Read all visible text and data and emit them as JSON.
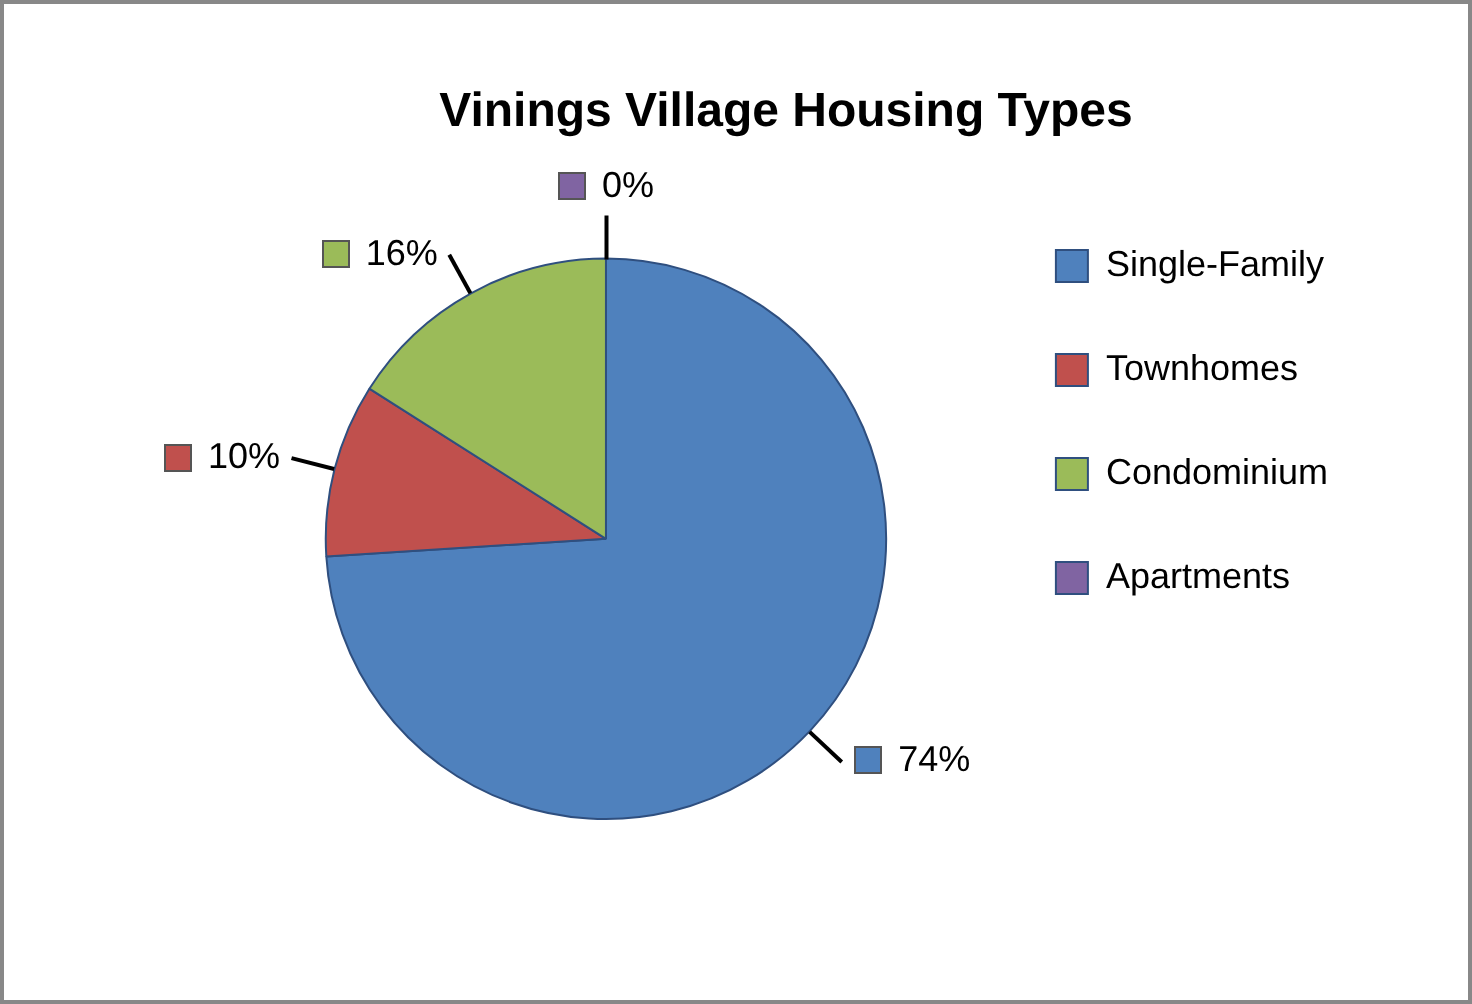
{
  "chart_data": {
    "type": "pie",
    "title": "Vinings Village Housing Types",
    "categories": [
      "Single-Family",
      "Townhomes",
      "Condominium",
      "Apartments"
    ],
    "values": [
      74,
      10,
      16,
      0
    ],
    "colors": [
      "#4f81bd",
      "#c0504d",
      "#9bbb59",
      "#8064a2"
    ],
    "value_labels": [
      "74%",
      "10%",
      "16%",
      "0%"
    ],
    "legend": "right"
  }
}
